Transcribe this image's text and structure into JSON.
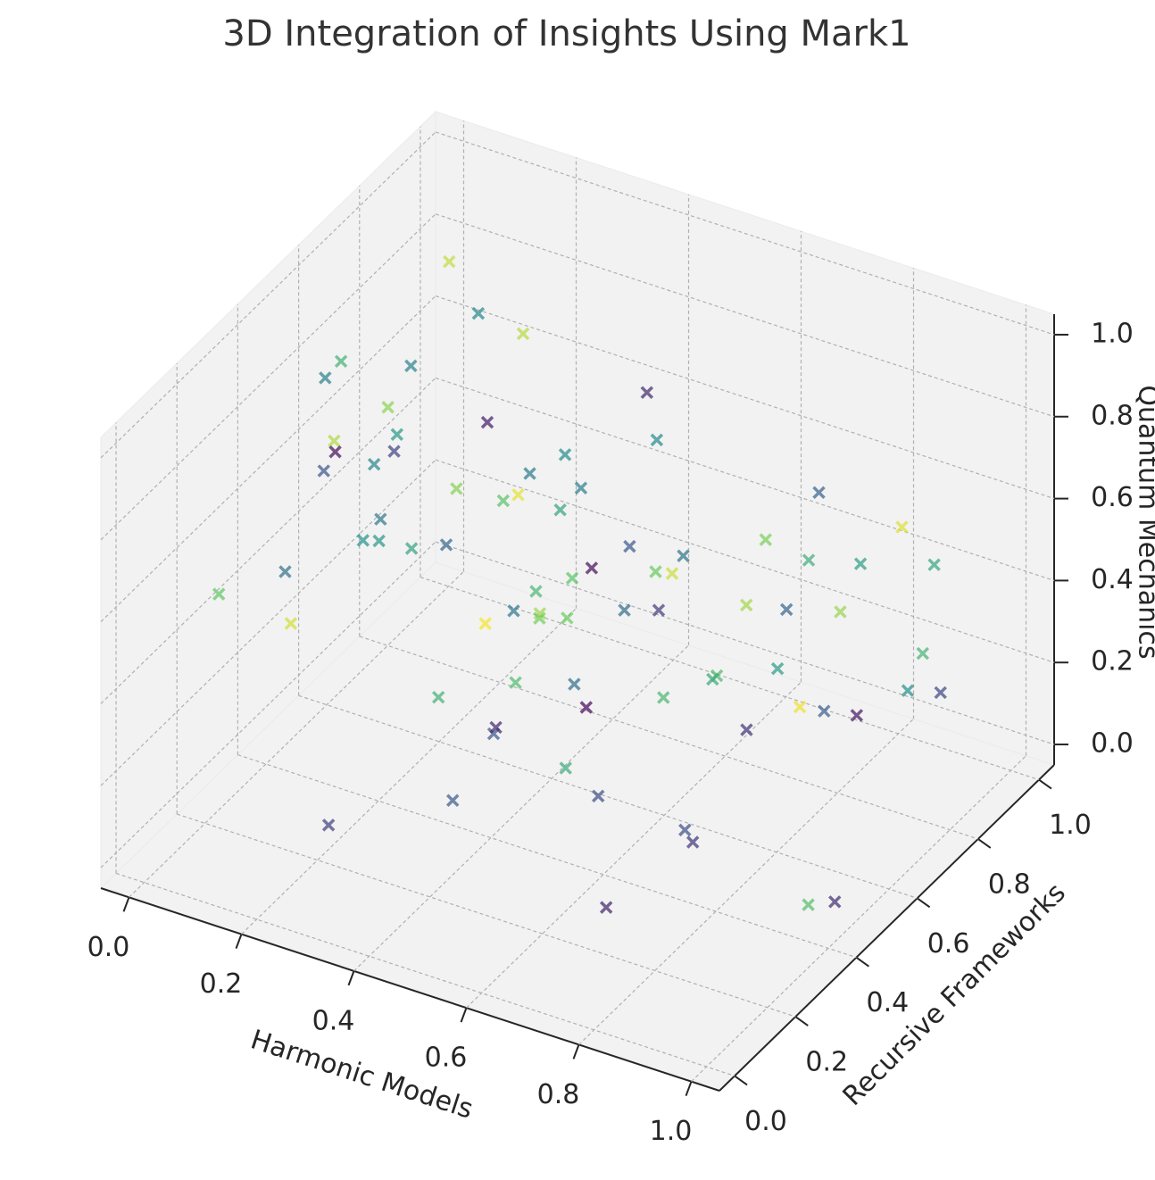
{
  "chart_data": {
    "type": "scatter3d",
    "title": "3D Integration of Insights Using Mark1",
    "x_label": "Harmonic Models",
    "y_label": "Recursive Frameworks",
    "z_label": "Quantum Mechanics",
    "marker": "x",
    "alpha": 0.7,
    "colormap": "viridis",
    "grid": true,
    "xlim": [
      -0.05,
      1.05
    ],
    "ylim": [
      -0.05,
      1.05
    ],
    "zlim": [
      -0.05,
      1.05
    ],
    "xticks": [
      {
        "value": 0,
        "label": "0.0"
      },
      0.2,
      0.4,
      0.6,
      0.8,
      {
        "value": 1,
        "label": "1.0"
      }
    ],
    "yticks": [
      {
        "value": 0,
        "label": "0.0"
      },
      0.2,
      0.4,
      0.6,
      0.8,
      {
        "value": 1,
        "label": "1.0"
      }
    ],
    "zticks": [
      {
        "value": 0,
        "label": "0.0"
      },
      0.2,
      0.4,
      0.6,
      0.8,
      {
        "value": 1,
        "label": "1.0"
      }
    ],
    "x": [
      0.12,
      0.85,
      0.33,
      0.67,
      0.05,
      0.91,
      0.48,
      0.22,
      0.76,
      0.59,
      0.14,
      0.38,
      0.97,
      0.63,
      0.27,
      0.81,
      0.44,
      0.09,
      0.72,
      0.55,
      0.31,
      0.88,
      0.17,
      0.66,
      0.03,
      0.49,
      0.94,
      0.25,
      0.78,
      0.41,
      0.58,
      0.11,
      0.84,
      0.36,
      0.69,
      0.21,
      0.99,
      0.52,
      0.07,
      0.74,
      0.46,
      0.29,
      0.87,
      0.15,
      0.61,
      0.34,
      0.92,
      0.57,
      0.02,
      0.8,
      0.43,
      0.19,
      0.71,
      0.26,
      0.96,
      0.64,
      0.39,
      0.1,
      0.83,
      0.5,
      0.23,
      0.77,
      0.06,
      0.68,
      0.45,
      0.89,
      0.32,
      0.54,
      0.16,
      0.73,
      0.98,
      0.28,
      0.62,
      0.4,
      0.86,
      0.13,
      0.56,
      0.35,
      0.93,
      0.08
    ],
    "y": [
      0.55,
      0.12,
      0.78,
      0.34,
      0.91,
      0.66,
      0.08,
      0.47,
      0.83,
      0.21,
      0.62,
      0.95,
      0.39,
      0.05,
      0.73,
      0.28,
      0.57,
      0.86,
      0.14,
      0.69,
      0.42,
      0.97,
      0.31,
      0.76,
      0.19,
      0.53,
      0.88,
      0.02,
      0.64,
      0.37,
      0.81,
      0.26,
      0.49,
      0.93,
      0.11,
      0.71,
      0.44,
      0.16,
      0.59,
      0.85,
      0.33,
      0.07,
      0.68,
      0.99,
      0.24,
      0.52,
      0.79,
      0.36,
      0.61,
      0.04,
      0.89,
      0.45,
      0.18,
      0.74,
      0.58,
      0.27,
      0.96,
      0.41,
      0.65,
      0.09,
      0.82,
      0.38,
      0.72,
      0.15,
      0.94,
      0.51,
      0.23,
      0.87,
      0.46,
      0.63,
      0.3,
      0.77,
      0.01,
      0.56,
      0.92,
      0.35,
      0.7,
      0.13,
      0.84,
      0.48
    ],
    "z": [
      0.44,
      0.91,
      0.18,
      0.67,
      0.83,
      0.29,
      0.56,
      0.97,
      0.11,
      0.72,
      0.38,
      0.63,
      0.05,
      0.86,
      0.49,
      0.24,
      0.78,
      0.33,
      0.94,
      0.15,
      0.61,
      0.42,
      0.88,
      0.07,
      0.53,
      0.75,
      0.2,
      0.68,
      0.36,
      0.99,
      0.13,
      0.57,
      0.81,
      0.26,
      0.46,
      0.92,
      0.03,
      0.7,
      0.39,
      0.62,
      0.85,
      0.17,
      0.51,
      0.3,
      0.96,
      0.09,
      0.66,
      0.43,
      0.79,
      0.22,
      0.58,
      0.87,
      0.35,
      0.02,
      0.74,
      0.47,
      0.19,
      0.93,
      0.64,
      0.31,
      0.8,
      0.12,
      0.55,
      0.89,
      0.27,
      0.41,
      0.98,
      0.06,
      0.71,
      0.5,
      0.84,
      0.23,
      0.6,
      0.37,
      0.14,
      0.76,
      0.45,
      0.9,
      0.32,
      0.69
    ],
    "color_values": [
      0.52,
      0.18,
      0.77,
      0.35,
      0.91,
      0.06,
      0.63,
      0.44,
      0.29,
      0.85,
      0.57,
      0.12,
      0.7,
      0.39,
      0.96,
      0.24,
      0.48,
      0.81,
      0.03,
      0.66,
      0.33,
      0.59,
      0.88,
      0.15,
      0.74,
      0.42,
      0.21,
      0.93,
      0.54,
      0.08,
      0.68,
      0.37,
      0.79,
      0.27,
      0.61,
      0.46,
      0.13,
      0.99,
      0.5,
      0.31,
      0.72,
      0.19,
      0.84,
      0.41,
      0.58,
      0.26,
      0.95,
      0.36,
      0.64,
      0.1,
      0.47,
      0.82,
      0.23,
      0.69,
      0.55,
      0.01,
      0.76,
      0.43,
      0.62,
      0.28,
      0.89,
      0.16,
      0.53,
      0.73,
      0.38,
      0.97,
      0.2,
      0.6,
      0.45,
      0.86,
      0.32,
      0.67,
      0.11,
      0.78,
      0.49,
      0.25,
      0.92,
      0.4,
      0.65,
      0.04
    ]
  }
}
